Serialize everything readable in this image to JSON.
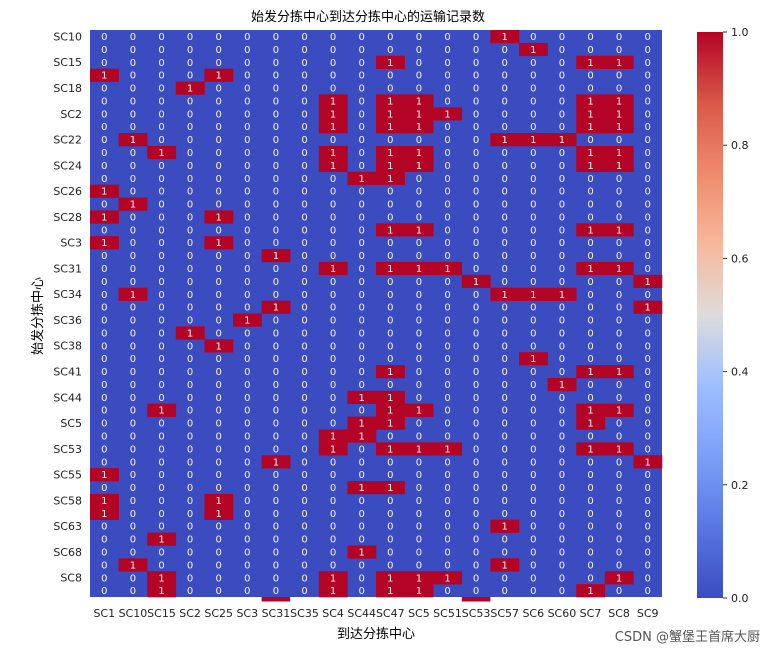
{
  "colors": {
    "low": "#3b4cc0",
    "mid": "#dddcdc",
    "high": "#b40426"
  },
  "chart_data": {
    "type": "heatmap",
    "title": "始发分拣中心到达分拣中心的运输记录数",
    "xlabel": "到达分拣中心",
    "ylabel": "始发分拣中心",
    "x_ticks_labeled": [
      "SC1",
      "SC10",
      "SC15",
      "SC2",
      "SC25",
      "SC3",
      "SC31",
      "SC35",
      "SC4",
      "SC44",
      "SC47",
      "SC5",
      "SC51",
      "SC53",
      "SC57",
      "SC6",
      "SC60",
      "SC7",
      "SC8",
      "SC9"
    ],
    "y_ticks_labeled": [
      "SC10",
      "SC15",
      "SC18",
      "SC2",
      "SC22",
      "SC24",
      "SC26",
      "SC28",
      "SC3",
      "SC31",
      "SC34",
      "SC36",
      "SC38",
      "SC41",
      "SC44",
      "SC5",
      "SC53",
      "SC55",
      "SC58",
      "SC63",
      "SC68",
      "SC8"
    ],
    "n_rows": 44,
    "n_cols": 20,
    "colorbar": {
      "min": 0.0,
      "max": 1.0,
      "ticks": [
        "0.0",
        "0.2",
        "0.4",
        "0.6",
        "0.8",
        "1.0"
      ]
    },
    "ones": [
      [
        0,
        14
      ],
      [
        1,
        15
      ],
      [
        2,
        10
      ],
      [
        2,
        17
      ],
      [
        2,
        18
      ],
      [
        3,
        0
      ],
      [
        3,
        4
      ],
      [
        4,
        3
      ],
      [
        5,
        8
      ],
      [
        5,
        10
      ],
      [
        5,
        11
      ],
      [
        5,
        17
      ],
      [
        5,
        18
      ],
      [
        6,
        8
      ],
      [
        6,
        10
      ],
      [
        6,
        11
      ],
      [
        6,
        12
      ],
      [
        6,
        17
      ],
      [
        6,
        18
      ],
      [
        7,
        8
      ],
      [
        7,
        10
      ],
      [
        7,
        11
      ],
      [
        7,
        17
      ],
      [
        7,
        18
      ],
      [
        8,
        1
      ],
      [
        8,
        14
      ],
      [
        8,
        15
      ],
      [
        8,
        16
      ],
      [
        9,
        2
      ],
      [
        9,
        8
      ],
      [
        9,
        10
      ],
      [
        9,
        11
      ],
      [
        9,
        17
      ],
      [
        9,
        18
      ],
      [
        10,
        8
      ],
      [
        10,
        10
      ],
      [
        10,
        11
      ],
      [
        10,
        17
      ],
      [
        10,
        18
      ],
      [
        11,
        9
      ],
      [
        11,
        10
      ],
      [
        12,
        0
      ],
      [
        13,
        1
      ],
      [
        14,
        0
      ],
      [
        14,
        4
      ],
      [
        15,
        10
      ],
      [
        15,
        11
      ],
      [
        15,
        17
      ],
      [
        15,
        18
      ],
      [
        16,
        0
      ],
      [
        16,
        4
      ],
      [
        17,
        6
      ],
      [
        18,
        8
      ],
      [
        18,
        10
      ],
      [
        18,
        11
      ],
      [
        18,
        12
      ],
      [
        18,
        17
      ],
      [
        18,
        18
      ],
      [
        19,
        13
      ],
      [
        19,
        19
      ],
      [
        20,
        1
      ],
      [
        20,
        14
      ],
      [
        20,
        15
      ],
      [
        20,
        16
      ],
      [
        21,
        6
      ],
      [
        21,
        19
      ],
      [
        22,
        5
      ],
      [
        23,
        3
      ],
      [
        24,
        4
      ],
      [
        25,
        15
      ],
      [
        26,
        10
      ],
      [
        26,
        17
      ],
      [
        26,
        18
      ],
      [
        27,
        16
      ],
      [
        28,
        9
      ],
      [
        28,
        10
      ],
      [
        29,
        2
      ],
      [
        29,
        10
      ],
      [
        29,
        11
      ],
      [
        29,
        17
      ],
      [
        29,
        18
      ],
      [
        30,
        9
      ],
      [
        30,
        10
      ],
      [
        30,
        17
      ],
      [
        31,
        8
      ],
      [
        31,
        9
      ],
      [
        32,
        8
      ],
      [
        32,
        10
      ],
      [
        32,
        11
      ],
      [
        32,
        12
      ],
      [
        32,
        17
      ],
      [
        32,
        18
      ],
      [
        33,
        6
      ],
      [
        33,
        19
      ],
      [
        34,
        0
      ],
      [
        35,
        9
      ],
      [
        35,
        10
      ],
      [
        36,
        0
      ],
      [
        36,
        4
      ],
      [
        37,
        0
      ],
      [
        37,
        4
      ],
      [
        38,
        14
      ],
      [
        39,
        2
      ],
      [
        40,
        9
      ],
      [
        41,
        1
      ],
      [
        41,
        14
      ],
      [
        42,
        2
      ],
      [
        42,
        8
      ],
      [
        42,
        10
      ],
      [
        42,
        11
      ],
      [
        42,
        12
      ],
      [
        42,
        18
      ],
      [
        43,
        2
      ],
      [
        43,
        8
      ],
      [
        43,
        10
      ],
      [
        43,
        11
      ],
      [
        43,
        17
      ]
    ],
    "extra_bottom_row_ones": [
      6,
      13
    ]
  },
  "watermark": "CSDN @蟹堡王首席大厨"
}
